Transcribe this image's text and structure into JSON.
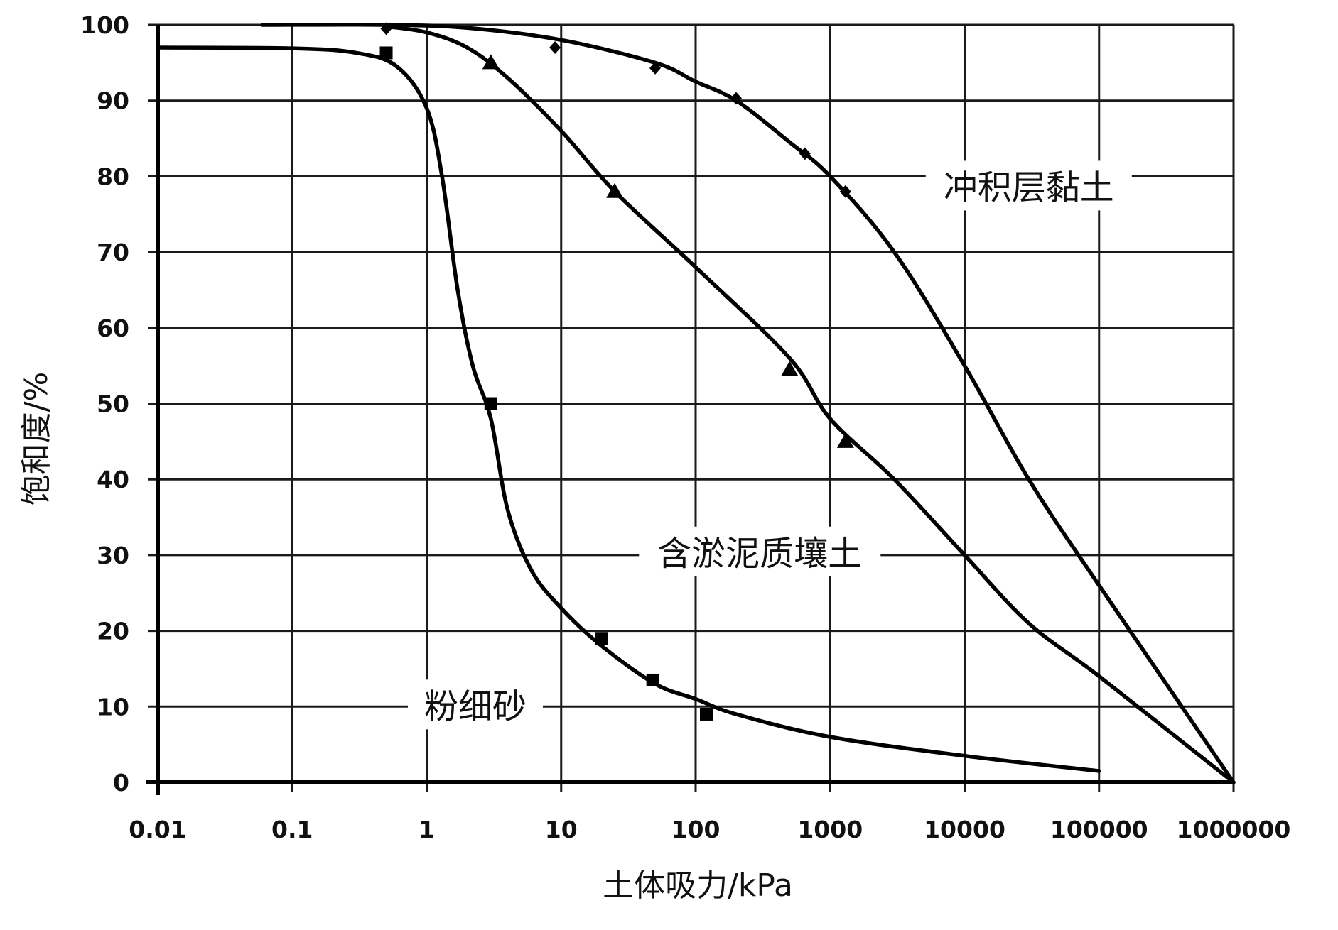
{
  "chart_data": {
    "type": "line",
    "xscale": "log",
    "xlim": [
      0.01,
      1000000
    ],
    "ylim": [
      0,
      100
    ],
    "xlabel": "土体吸力/kPa",
    "ylabel": "饱和度/%",
    "grid": true,
    "x_ticks": [
      0.01,
      0.1,
      1,
      10,
      100,
      1000,
      10000,
      100000,
      1000000
    ],
    "x_tick_labels": [
      "0.01",
      "0.1",
      "1",
      "10",
      "100",
      "1000",
      "10000",
      "100000",
      "1000000"
    ],
    "y_ticks": [
      0,
      10,
      20,
      30,
      40,
      50,
      60,
      70,
      80,
      90,
      100
    ],
    "y_tick_labels": [
      "0",
      "10",
      "20",
      "30",
      "40",
      "50",
      "60",
      "70",
      "80",
      "90",
      "100"
    ],
    "series": [
      {
        "name": "冲积层黏土",
        "marker": "diamond",
        "curve": [
          [
            0.06,
            100
          ],
          [
            0.5,
            100
          ],
          [
            2,
            99.6
          ],
          [
            10,
            98
          ],
          [
            50,
            95
          ],
          [
            100,
            92.5
          ],
          [
            200,
            90
          ],
          [
            500,
            84.5
          ],
          [
            1000,
            80
          ],
          [
            3000,
            70
          ],
          [
            10000,
            55
          ],
          [
            30000,
            40
          ],
          [
            100000,
            26
          ],
          [
            1000000,
            0
          ]
        ],
        "points": [
          [
            0.5,
            99.5
          ],
          [
            9,
            97
          ],
          [
            50,
            94.3
          ],
          [
            200,
            90.3
          ],
          [
            650,
            83
          ],
          [
            1300,
            78
          ]
        ]
      },
      {
        "name": "含淤泥质壤土",
        "marker": "triangle",
        "curve": [
          [
            0.5,
            99.8
          ],
          [
            1,
            99
          ],
          [
            2,
            97
          ],
          [
            4,
            93
          ],
          [
            10,
            86
          ],
          [
            25,
            78
          ],
          [
            100,
            68
          ],
          [
            500,
            56
          ],
          [
            1000,
            48
          ],
          [
            3000,
            40
          ],
          [
            10000,
            30
          ],
          [
            30000,
            21
          ],
          [
            100000,
            14
          ],
          [
            1000000,
            0
          ]
        ],
        "points": [
          [
            3,
            95
          ],
          [
            25,
            78
          ],
          [
            500,
            54.5
          ],
          [
            1300,
            45
          ]
        ]
      },
      {
        "name": "粉细砂",
        "marker": "square",
        "curve": [
          [
            0.01,
            97
          ],
          [
            0.1,
            96.9
          ],
          [
            0.3,
            96.3
          ],
          [
            0.6,
            94.5
          ],
          [
            1,
            89
          ],
          [
            1.3,
            80
          ],
          [
            1.7,
            65
          ],
          [
            2.2,
            55
          ],
          [
            3,
            48
          ],
          [
            4,
            36
          ],
          [
            6,
            28
          ],
          [
            10,
            23
          ],
          [
            20,
            18
          ],
          [
            50,
            13
          ],
          [
            100,
            11
          ],
          [
            200,
            9
          ],
          [
            1000,
            6
          ],
          [
            10000,
            3.5
          ],
          [
            100000,
            1.5
          ]
        ],
        "points": [
          [
            0.5,
            96.3
          ],
          [
            3,
            50
          ],
          [
            20,
            19
          ],
          [
            48,
            13.5
          ],
          [
            120,
            9
          ]
        ]
      }
    ],
    "annotations": [
      {
        "text": "冲积层黏土",
        "x": 30000,
        "y": 78.5
      },
      {
        "text": "含淤泥质壤土",
        "x": 300,
        "y": 30.2
      },
      {
        "text": "粉细砂",
        "x": 2.3,
        "y": 10
      }
    ]
  }
}
